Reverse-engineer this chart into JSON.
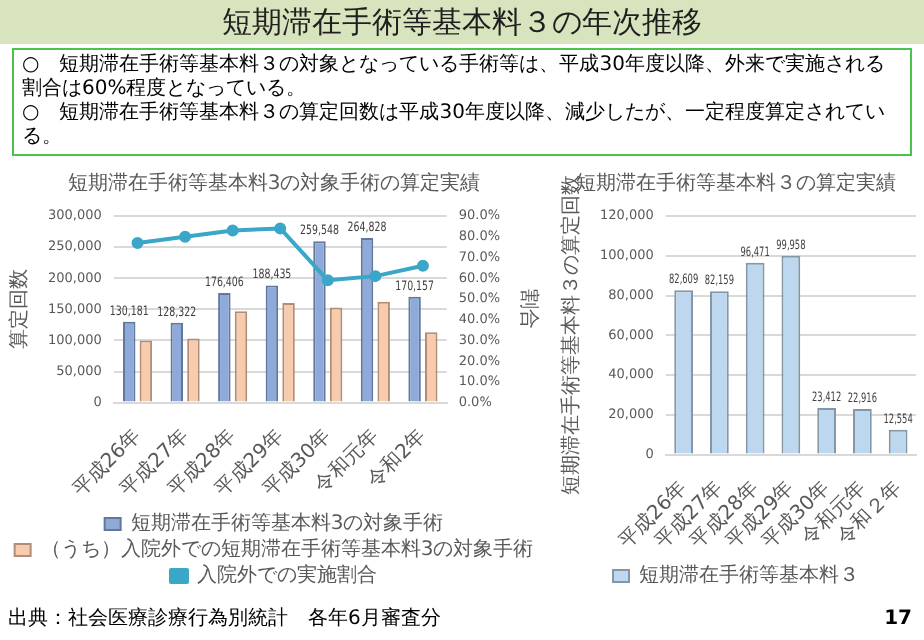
{
  "chart_data": [
    {
      "type": "other",
      "title": "短期滞在手術等基本料３の年次推移",
      "annotations": [
        "○　短期滞在手術等基本料３の対象となっている手術等は、平成30年度以降、外来で実施される割合は60%程度となっている。",
        "○　短期滞在手術等基本料３の算定回数は平成30年度以降、減少したが、一定程度算定されている。",
        "出典：社会医療診療行為別統計　各年6月審査分",
        "17"
      ]
    },
    {
      "type": "bar",
      "title": "短期滞在手術等基本料3の対象手術の算定実績",
      "ylabel": "算定回数",
      "y2label": "割合",
      "categories": [
        "平成26年",
        "平成27年",
        "平成28年",
        "平成29年",
        "平成30年",
        "令和元年",
        "令和2年"
      ],
      "series": [
        {
          "name": "短期滞在手術等基本料3の対象手術",
          "color": "#8eaadb",
          "values": [
            130181,
            128322,
            176406,
            188435,
            259548,
            264828,
            170157
          ],
          "value_labels": [
            "130,181",
            "128,322",
            "176,406",
            "188,435",
            "259,548",
            "264,828",
            "170,157"
          ]
        },
        {
          "name": "（うち）入院外での短期滞在手術等基本料3の対象手術",
          "color": "#f8cbad",
          "values": [
            100000,
            103000,
            147000,
            160000,
            153000,
            162000,
            113000
          ]
        },
        {
          "name": "入院外での実施割合",
          "type": "line",
          "axis": "y2",
          "color": "#3aa7c9",
          "values": [
            77,
            80,
            83,
            84,
            59,
            61,
            66
          ]
        }
      ],
      "ylim": [
        0,
        300000
      ],
      "yticks": [
        {
          "value": 0,
          "label": "0"
        },
        {
          "value": 50000,
          "label": "50,000"
        },
        {
          "value": 100000,
          "label": "100,000"
        },
        {
          "value": 150000,
          "label": "150,000"
        },
        {
          "value": 200000,
          "label": "200,000"
        },
        {
          "value": 250000,
          "label": "250,000"
        },
        {
          "value": 300000,
          "label": "300,000"
        }
      ],
      "y2lim": [
        0,
        90
      ],
      "y2ticks": [
        {
          "value": 0,
          "label": "0.0%"
        },
        {
          "value": 10,
          "label": "10.0%"
        },
        {
          "value": 20,
          "label": "20.0%"
        },
        {
          "value": 30,
          "label": "30.0%"
        },
        {
          "value": 40,
          "label": "40.0%"
        },
        {
          "value": 50,
          "label": "50.0%"
        },
        {
          "value": 60,
          "label": "60.0%"
        },
        {
          "value": 70,
          "label": "70.0%"
        },
        {
          "value": 80,
          "label": "80.0%"
        },
        {
          "value": 90,
          "label": "90.0%"
        }
      ],
      "grid": "y",
      "legend": "bottom",
      "marker": "circle"
    },
    {
      "type": "bar",
      "title": "短期滞在手術等基本料３の算定実績",
      "ylabel": "短期滞在手術等基本料３の算定回数",
      "categories": [
        "平成26年",
        "平成27年",
        "平成28年",
        "平成29年",
        "平成30年",
        "令和元年",
        "令和２年"
      ],
      "series": [
        {
          "name": "短期滞在手術等基本料３",
          "color": "#bdd7ee",
          "values": [
            82609,
            82159,
            96471,
            99958,
            23412,
            22916,
            12554
          ],
          "value_labels": [
            "82,609",
            "82,159",
            "96,471",
            "99,958",
            "23,412",
            "22,916",
            "12,554"
          ]
        }
      ],
      "ylim": [
        0,
        120000
      ],
      "yticks": [
        {
          "value": 0,
          "label": "0"
        },
        {
          "value": 20000,
          "label": "20,000"
        },
        {
          "value": 40000,
          "label": "40,000"
        },
        {
          "value": 60000,
          "label": "60,000"
        },
        {
          "value": 80000,
          "label": "80,000"
        },
        {
          "value": 100000,
          "label": "100,000"
        },
        {
          "value": 120000,
          "label": "120,000"
        }
      ],
      "grid": "y",
      "legend": "bottom"
    }
  ]
}
